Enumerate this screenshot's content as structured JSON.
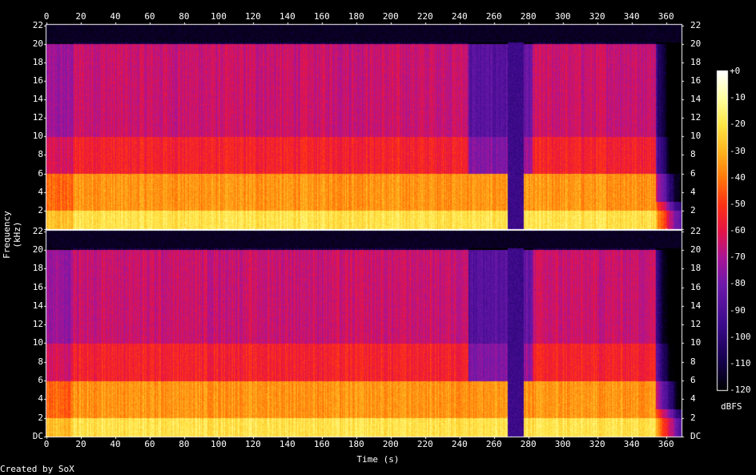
{
  "chart_data": {
    "type": "heatmap",
    "title": "",
    "xlabel": "Time (s)",
    "ylabel": "Frequency (kHz)",
    "xlim": [
      0,
      369
    ],
    "ylim": [
      0,
      22.05
    ],
    "x_ticks": [
      "0",
      "20",
      "40",
      "60",
      "80",
      "100",
      "120",
      "140",
      "160",
      "180",
      "200",
      "220",
      "240",
      "260",
      "280",
      "300",
      "320",
      "340",
      "360"
    ],
    "y_ticks_lower_channel": [
      "DC",
      "2",
      "4",
      "6",
      "8",
      "10",
      "12",
      "14",
      "16",
      "18",
      "20",
      "22"
    ],
    "y_ticks_upper_channel": [
      "2",
      "4",
      "6",
      "8",
      "10",
      "12",
      "14",
      "16",
      "18",
      "20",
      "22"
    ],
    "channels": 2,
    "colorbar": {
      "label": "dBFS",
      "ticks": [
        "+0",
        "-10",
        "-20",
        "-30",
        "-40",
        "-50",
        "-60",
        "-70",
        "-80",
        "-90",
        "-100",
        "-110",
        "-120"
      ],
      "range": [
        -120,
        0
      ]
    },
    "energy_bands_db": [
      {
        "kHz": [
          0,
          2
        ],
        "level_db": -20
      },
      {
        "kHz": [
          2,
          6
        ],
        "level_db": -35
      },
      {
        "kHz": [
          6,
          10
        ],
        "level_db": -55
      },
      {
        "kHz": [
          10,
          20
        ],
        "level_db": -65
      },
      {
        "kHz": [
          20,
          22
        ],
        "level_db": -110
      }
    ],
    "quiet_segments_s": [
      [
        245,
        268
      ],
      [
        277,
        282
      ]
    ],
    "gap_segment_s": [
      268,
      277
    ],
    "end_s": 354,
    "colors": {
      "background": "#000000",
      "hot": "#ffff80",
      "mid": "#ff3300",
      "cool": "#6b1fb4",
      "cold": "#1a0054"
    }
  },
  "footer": {
    "credit": "Created by SoX"
  }
}
